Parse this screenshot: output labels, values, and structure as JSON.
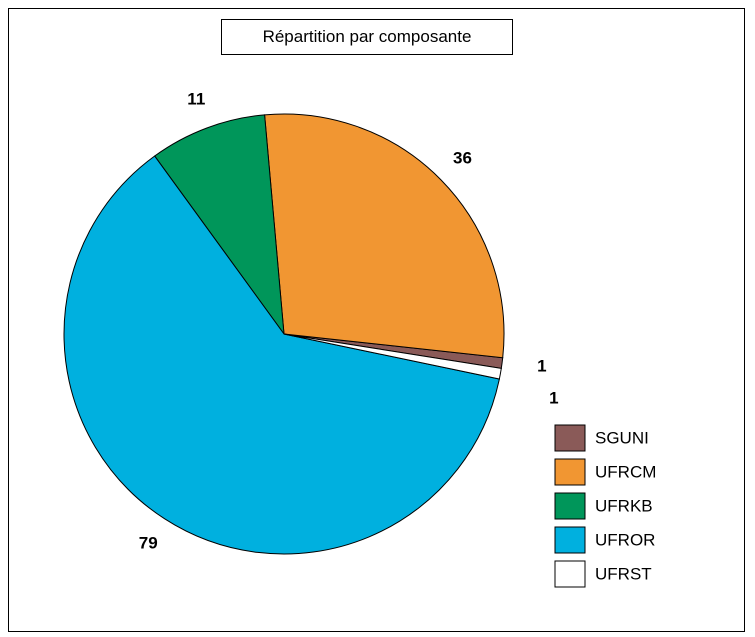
{
  "chart_data": {
    "type": "pie",
    "title": "Répartition par composante",
    "categories": [
      "SGUNI",
      "UFRCM",
      "UFRKB",
      "UFROR",
      "UFRST"
    ],
    "values": [
      1,
      36,
      11,
      79,
      1
    ],
    "colors": [
      "#8a5a58",
      "#f19632",
      "#00965a",
      "#00b0df",
      "#ffffff"
    ],
    "legend_position": "bottom-right"
  }
}
